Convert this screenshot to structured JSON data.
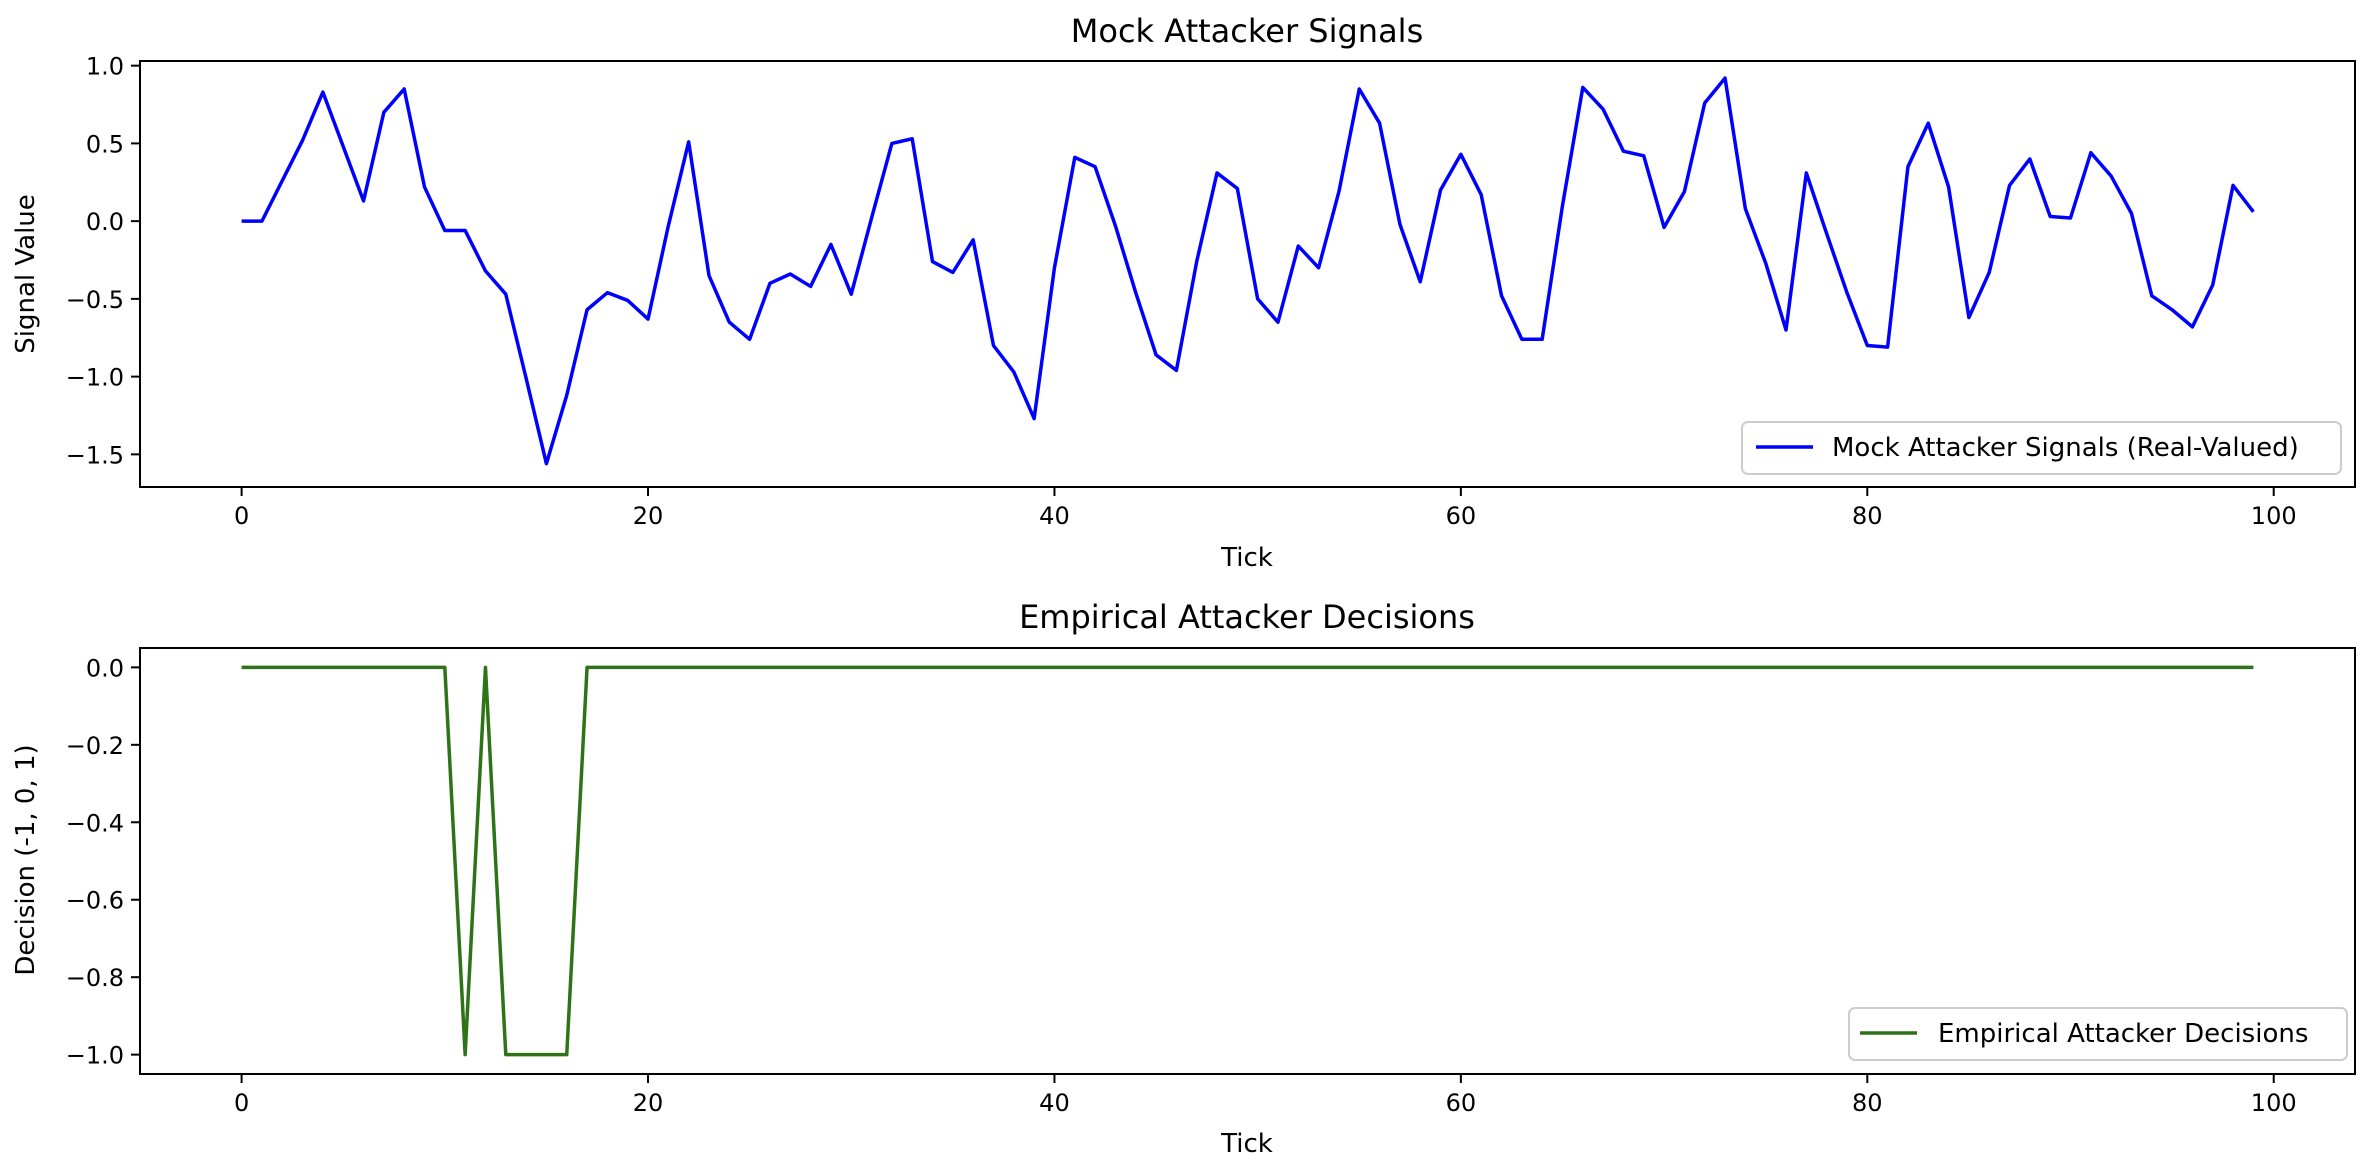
{
  "chart_data": [
    {
      "type": "line",
      "title": "Mock Attacker Signals",
      "xlabel": "Tick",
      "ylabel": "Signal Value",
      "xlim": [
        -5,
        104
      ],
      "ylim": [
        -1.71,
        1.03
      ],
      "xticks": [
        0,
        20,
        40,
        60,
        80,
        100
      ],
      "xtick_labels": [
        "0",
        "20",
        "40",
        "60",
        "80",
        "100"
      ],
      "yticks": [
        1.0,
        0.5,
        0.0,
        -0.5,
        -1.0,
        -1.5
      ],
      "ytick_labels": [
        "1.0",
        "0.5",
        "0.0",
        "−0.5",
        "−1.0",
        "−1.5"
      ],
      "grid": false,
      "legend_position": "lower-right",
      "series": [
        {
          "name": "Mock Attacker Signals (Real-Valued)",
          "color": "#0000ff",
          "x": [
            0,
            1,
            2,
            3,
            4,
            5,
            6,
            7,
            8,
            9,
            10,
            11,
            12,
            13,
            14,
            15,
            16,
            17,
            18,
            19,
            20,
            21,
            22,
            23,
            24,
            25,
            26,
            27,
            28,
            29,
            30,
            31,
            32,
            33,
            34,
            35,
            36,
            37,
            38,
            39,
            40,
            41,
            42,
            43,
            44,
            45,
            46,
            47,
            48,
            49,
            50,
            51,
            52,
            53,
            54,
            55,
            56,
            57,
            58,
            59,
            60,
            61,
            62,
            63,
            64,
            65,
            66,
            67,
            68,
            69,
            70,
            71,
            72,
            73,
            74,
            75,
            76,
            77,
            78,
            79,
            80,
            81,
            82,
            83,
            84,
            85,
            86,
            87,
            88,
            89,
            90,
            91,
            92,
            93,
            94,
            95,
            96,
            97,
            98,
            99
          ],
          "values": [
            0.0,
            0.0,
            0.26,
            0.52,
            0.83,
            0.48,
            0.13,
            0.7,
            0.85,
            0.22,
            -0.06,
            -0.06,
            -0.32,
            -0.47,
            -1.01,
            -1.56,
            -1.12,
            -0.57,
            -0.46,
            -0.51,
            -0.63,
            -0.03,
            0.51,
            -0.35,
            -0.65,
            -0.76,
            -0.4,
            -0.34,
            -0.42,
            -0.15,
            -0.47,
            0.02,
            0.5,
            0.53,
            -0.26,
            -0.33,
            -0.12,
            -0.8,
            -0.97,
            -1.27,
            -0.3,
            0.41,
            0.35,
            -0.03,
            -0.46,
            -0.86,
            -0.96,
            -0.26,
            0.31,
            0.21,
            -0.5,
            -0.65,
            -0.16,
            -0.3,
            0.19,
            0.85,
            0.63,
            -0.02,
            -0.39,
            0.2,
            0.43,
            0.17,
            -0.48,
            -0.76,
            -0.76,
            0.1,
            0.86,
            0.72,
            0.45,
            0.42,
            -0.04,
            0.19,
            0.76,
            0.92,
            0.08,
            -0.27,
            -0.7,
            0.31,
            -0.08,
            -0.46,
            -0.8,
            -0.81,
            0.35,
            0.63,
            0.22,
            -0.62,
            -0.33,
            0.23,
            0.4,
            0.03,
            0.02,
            0.44,
            0.29,
            0.05,
            -0.48,
            -0.57,
            -0.68,
            -0.41,
            0.23,
            0.06
          ]
        }
      ]
    },
    {
      "type": "line",
      "title": "Empirical Attacker Decisions",
      "xlabel": "Tick",
      "ylabel": "Decision (-1, 0, 1)",
      "xlim": [
        -5,
        104
      ],
      "ylim": [
        -1.05,
        0.05
      ],
      "xticks": [
        0,
        20,
        40,
        60,
        80,
        100
      ],
      "xtick_labels": [
        "0",
        "20",
        "40",
        "60",
        "80",
        "100"
      ],
      "yticks": [
        0.0,
        -0.2,
        -0.4,
        -0.6,
        -0.8,
        -1.0
      ],
      "ytick_labels": [
        "0.0",
        "−0.2",
        "−0.4",
        "−0.6",
        "−0.8",
        "−1.0"
      ],
      "grid": false,
      "legend_position": "lower-right",
      "series": [
        {
          "name": "Empirical Attacker Decisions",
          "color": "#2e7318",
          "x": [
            0,
            1,
            2,
            3,
            4,
            5,
            6,
            7,
            8,
            9,
            10,
            11,
            12,
            13,
            14,
            15,
            16,
            17,
            18,
            19,
            20,
            21,
            22,
            23,
            24,
            25,
            26,
            27,
            28,
            29,
            30,
            31,
            32,
            33,
            34,
            35,
            36,
            37,
            38,
            39,
            40,
            41,
            42,
            43,
            44,
            45,
            46,
            47,
            48,
            49,
            50,
            51,
            52,
            53,
            54,
            55,
            56,
            57,
            58,
            59,
            60,
            61,
            62,
            63,
            64,
            65,
            66,
            67,
            68,
            69,
            70,
            71,
            72,
            73,
            74,
            75,
            76,
            77,
            78,
            79,
            80,
            81,
            82,
            83,
            84,
            85,
            86,
            87,
            88,
            89,
            90,
            91,
            92,
            93,
            94,
            95,
            96,
            97,
            98,
            99
          ],
          "values": [
            0,
            0,
            0,
            0,
            0,
            0,
            0,
            0,
            0,
            0,
            0,
            -1,
            0,
            -1,
            -1,
            -1,
            -1,
            0,
            0,
            0,
            0,
            0,
            0,
            0,
            0,
            0,
            0,
            0,
            0,
            0,
            0,
            0,
            0,
            0,
            0,
            0,
            0,
            0,
            0,
            0,
            0,
            0,
            0,
            0,
            0,
            0,
            0,
            0,
            0,
            0,
            0,
            0,
            0,
            0,
            0,
            0,
            0,
            0,
            0,
            0,
            0,
            0,
            0,
            0,
            0,
            0,
            0,
            0,
            0,
            0,
            0,
            0,
            0,
            0,
            0,
            0,
            0,
            0,
            0,
            0,
            0,
            0,
            0,
            0,
            0,
            0,
            0,
            0,
            0,
            0,
            0,
            0,
            0,
            0,
            0,
            0,
            0,
            0,
            0,
            0
          ]
        }
      ]
    }
  ]
}
